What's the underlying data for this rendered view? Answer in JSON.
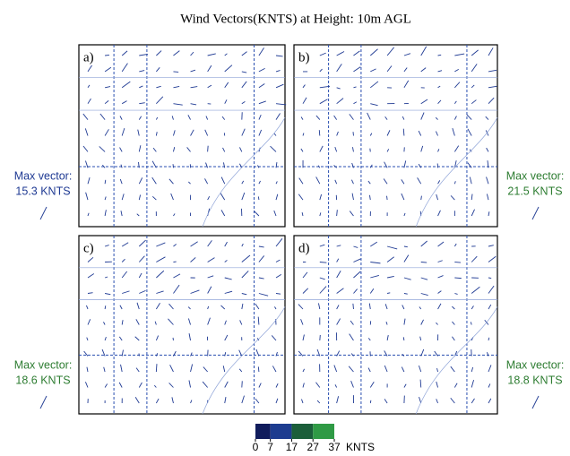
{
  "title": "Wind Vectors(KNTS) at Height: 10m AGL",
  "panels": [
    {
      "label": "a)",
      "max_label": "Max vector:",
      "max_value": "15.3 KNTS",
      "color": "#1f3a93"
    },
    {
      "label": "b)",
      "max_label": "Max vector:",
      "max_value": "21.5 KNTS",
      "color": "#2e7d32"
    },
    {
      "label": "c)",
      "max_label": "Max vector:",
      "max_value": "18.6 KNTS",
      "color": "#2e7d32"
    },
    {
      "label": "d)",
      "max_label": "Max vector:",
      "max_value": "18.8 KNTS",
      "color": "#2e7d32"
    }
  ],
  "colorbar": {
    "ticks": [
      0,
      7,
      17,
      27,
      37
    ],
    "unit": "KNTS",
    "colors": [
      "#101c5c",
      "#1d3c8f",
      "#1b5e3a",
      "#2f9a45"
    ]
  }
}
